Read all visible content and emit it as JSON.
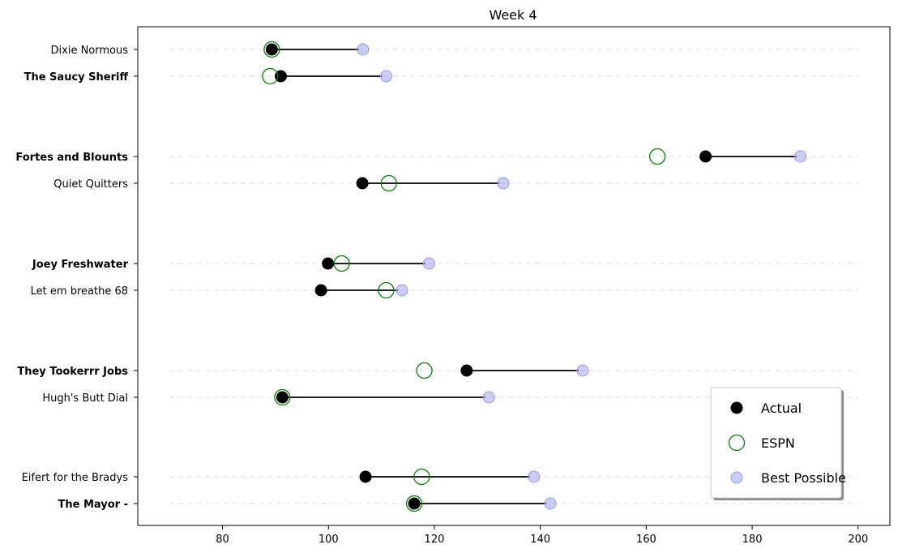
{
  "chart_data": {
    "type": "dumbbell",
    "title": "Week 4",
    "xlabel": "",
    "ylabel": "",
    "xlim": [
      64,
      206
    ],
    "grid": "horizontal-dashed",
    "xticks": [
      80,
      100,
      120,
      140,
      160,
      180,
      200
    ],
    "teams": [
      {
        "name": "Dixie Normous",
        "bold": false,
        "actual": 89.3,
        "espn": 89.3,
        "best": 106.5
      },
      {
        "name": "The Saucy Sheriff",
        "bold": true,
        "actual": 91.0,
        "espn": 89.0,
        "best": 110.9
      },
      {
        "name": "Fortes and Blounts",
        "bold": true,
        "actual": 171.2,
        "espn": 162.1,
        "best": 189.1
      },
      {
        "name": "Quiet Quitters",
        "bold": false,
        "actual": 106.4,
        "espn": 111.4,
        "best": 133.0
      },
      {
        "name": "Joey Freshwater",
        "bold": true,
        "actual": 99.9,
        "espn": 102.5,
        "best": 119.0
      },
      {
        "name": "Let em breathe 68",
        "bold": false,
        "actual": 98.6,
        "espn": 110.9,
        "best": 113.9
      },
      {
        "name": "They Tookerrr Jobs",
        "bold": true,
        "actual": 126.1,
        "espn": 118.1,
        "best": 148.0
      },
      {
        "name": "Hugh's  Butt Dial",
        "bold": false,
        "actual": 91.3,
        "espn": 91.3,
        "best": 130.3
      },
      {
        "name": "Eifert  for the Bradys",
        "bold": false,
        "actual": 107.0,
        "espn": 117.6,
        "best": 138.8
      },
      {
        "name": "The Mayor -",
        "bold": true,
        "actual": 116.2,
        "espn": 116.2,
        "best": 141.9
      }
    ],
    "legend": {
      "placement": "lower-right",
      "entries": [
        {
          "label": "Actual",
          "key": "actual"
        },
        {
          "label": "ESPN",
          "key": "espn"
        },
        {
          "label": "Best Possible",
          "key": "best"
        }
      ]
    },
    "colors": {
      "actual": "#000000",
      "espn": "#008000",
      "best": "#9999ee",
      "grid": "#dddddd",
      "connector": "#000000"
    }
  }
}
